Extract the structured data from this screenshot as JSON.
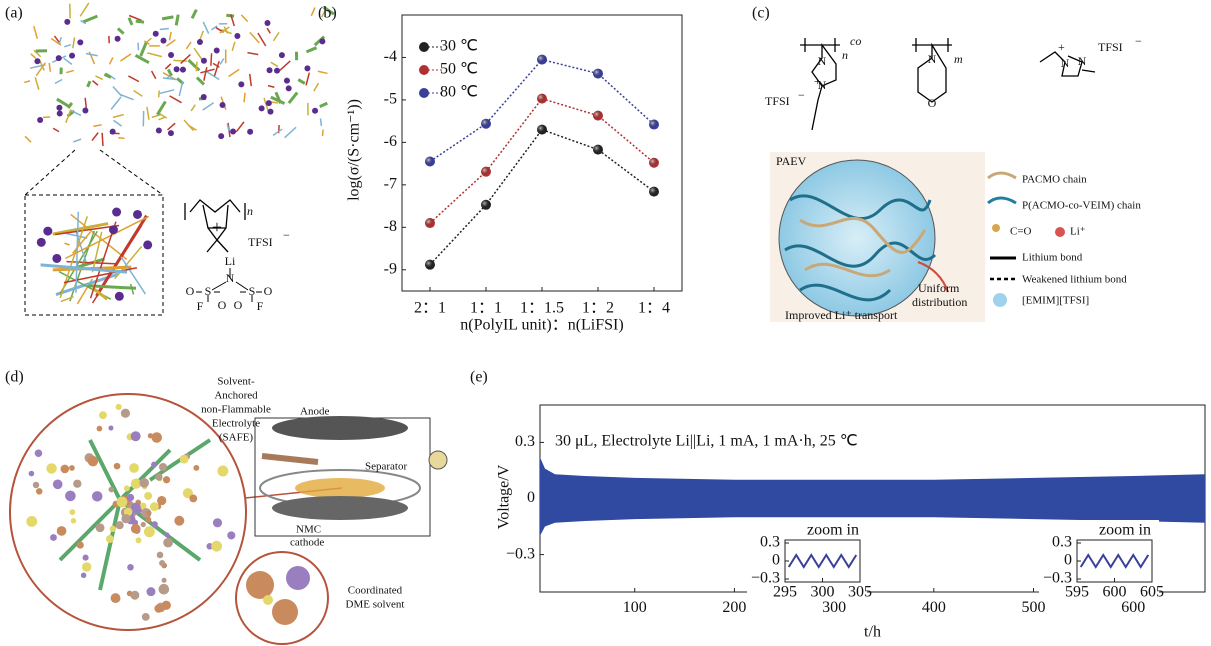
{
  "panel_a": {
    "label": "(a)",
    "repeat": "n",
    "anion": "TFSI",
    "charge": "−",
    "plus": "+",
    "atoms": [
      "Li",
      "N",
      "S",
      "S",
      "O",
      "O",
      "O",
      "O",
      "F",
      "F"
    ]
  },
  "panel_c": {
    "label": "(c)",
    "subscripts": [
      "n",
      "co",
      "m"
    ],
    "anion_1": "TFSI",
    "anion_2": "TFSI",
    "charge": "−",
    "plus": "+",
    "atoms": [
      "N",
      "N",
      "N",
      "O",
      "N",
      "N"
    ],
    "inset_title": "PAEV",
    "arrow_text": [
      "Uniform",
      "distribution"
    ],
    "bottom_text": "Improved Li⁺ transport",
    "legend": [
      "PACMO chain",
      "P(ACMO-co-VEIM) chain",
      "C=O",
      "Li⁺",
      "Lithium bond",
      "Weakened lithium bond",
      "[EMIM][TFSI]"
    ]
  },
  "panel_d": {
    "label": "(d)",
    "safe_lines": [
      "Solvent-",
      "Anchored",
      "non-Flammable",
      "Electrolyte",
      "(SAFE)"
    ],
    "anode": "Anode",
    "separator": "Separator",
    "cathode_lines": [
      "NMC",
      "cathode"
    ],
    "solvent_lines": [
      "Coordinated",
      "DME solvent"
    ]
  },
  "chart_data": [
    {
      "type": "line",
      "panel_label": "(b)",
      "y_label": "log(σ/(S·cm⁻¹))",
      "x_label": "n(PolyIL unit)：n(LiFSI)",
      "categories": [
        "2：1",
        "1：1",
        "1：1.5",
        "1：2",
        "1：4"
      ],
      "series": [
        {
          "name": "30 ℃",
          "color": "#222222",
          "values": [
            -8.88,
            -7.47,
            -5.7,
            -6.17,
            -7.16
          ]
        },
        {
          "name": "50 ℃",
          "color": "#b03030",
          "values": [
            -7.9,
            -6.69,
            -4.97,
            -5.37,
            -6.48
          ]
        },
        {
          "name": "80 ℃",
          "color": "#3a3f9a",
          "values": [
            -6.45,
            -5.56,
            -4.05,
            -4.38,
            -5.58
          ]
        }
      ],
      "ylim": [
        -9.5,
        -3
      ],
      "yticks": [
        -9,
        -8,
        -7,
        -6,
        -5,
        -4
      ],
      "legend": "upper left"
    },
    {
      "type": "area",
      "panel_label": "(e)",
      "y_label": "Voltage/V",
      "x_label": "t/h",
      "annotation": "30 μL, Electrolyte Li||Li, 1 mA, 1 mA·h, 25 ℃",
      "x": [
        5,
        10,
        20,
        50,
        100,
        200,
        300,
        400,
        500,
        600,
        672
      ],
      "series": [
        {
          "color": "#2f4aa0",
          "values": [
            0.22,
            0.16,
            0.13,
            0.12,
            0.11,
            0.1,
            0.1,
            0.1,
            0.11,
            0.12,
            0.13
          ]
        },
        {
          "color": "#2f4aa0",
          "values": [
            -0.2,
            -0.15,
            -0.13,
            -0.12,
            -0.11,
            -0.1,
            -0.1,
            -0.1,
            -0.11,
            -0.12,
            -0.13
          ]
        }
      ],
      "xlim": [
        5,
        672
      ],
      "xticks": [
        100,
        200,
        300,
        400,
        500,
        600
      ],
      "ylim": [
        -0.5,
        0.5
      ],
      "yticks": [
        {
          "value": -0.3,
          "label": "−0.3"
        },
        0,
        0.3
      ]
    },
    {
      "type": "line",
      "annotation": "zoom in",
      "x": [
        295.5,
        296.5,
        297.5,
        298.5,
        299.5,
        300.5,
        301.5,
        302.5,
        303.5,
        304.5
      ],
      "series": [
        {
          "color": "#3a3f9a",
          "values": [
            -0.1,
            0.1,
            -0.1,
            0.1,
            -0.1,
            0.1,
            -0.1,
            0.1,
            -0.1,
            0.1
          ]
        }
      ],
      "xlim": [
        295,
        305
      ],
      "xticks": [
        295,
        300,
        305
      ],
      "ylim": [
        -0.35,
        0.35
      ],
      "yticks": [
        {
          "value": -0.3,
          "label": "−0.3"
        },
        0,
        0.3
      ]
    },
    {
      "type": "line",
      "annotation": "zoom in",
      "x": [
        595.5,
        596.5,
        597.5,
        598.5,
        599.5,
        600.5,
        601.5,
        602.5,
        603.5,
        604.5
      ],
      "series": [
        {
          "color": "#3a3f9a",
          "values": [
            -0.1,
            0.1,
            -0.1,
            0.1,
            -0.1,
            0.1,
            -0.1,
            0.1,
            -0.1,
            0.1
          ]
        }
      ],
      "xlim": [
        595,
        605
      ],
      "xticks": [
        595,
        600,
        605
      ],
      "ylim": [
        -0.35,
        0.35
      ],
      "yticks": [
        {
          "value": -0.3,
          "label": "−0.3"
        },
        0,
        0.3
      ]
    }
  ]
}
